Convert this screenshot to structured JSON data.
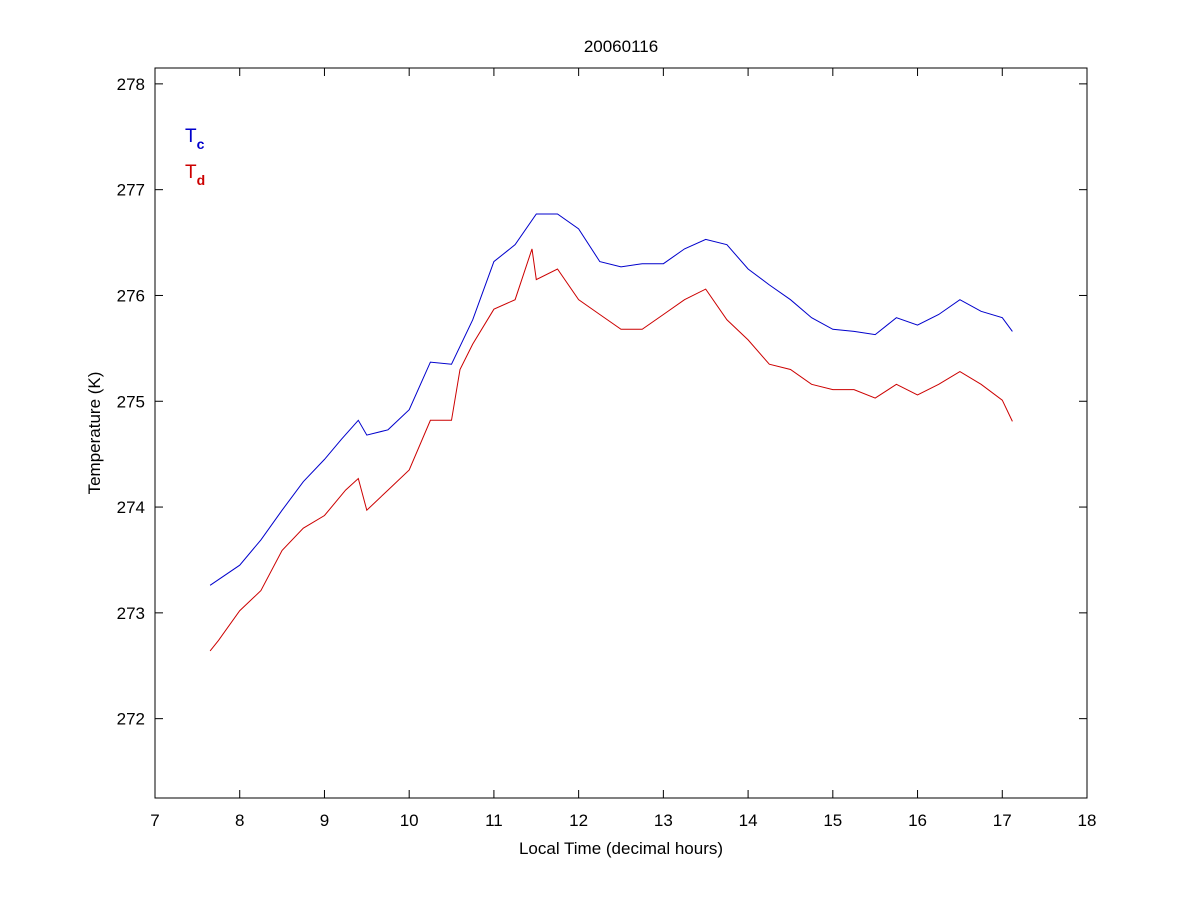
{
  "chart_data": {
    "type": "line",
    "title": "20060116",
    "xlabel": "Local Time (decimal hours)",
    "ylabel": "Temperature (K)",
    "xlim": [
      7,
      18
    ],
    "ylim": [
      271.25,
      278.15
    ],
    "xticks": [
      7,
      8,
      9,
      10,
      11,
      12,
      13,
      14,
      15,
      16,
      17,
      18
    ],
    "yticks": [
      272,
      273,
      274,
      275,
      276,
      277,
      278
    ],
    "grid": false,
    "legend_placement": "top-left",
    "legend": [
      {
        "main": "T",
        "sub": "c",
        "color": "#0000cc"
      },
      {
        "main": "T",
        "sub": "d",
        "color": "#cc0000"
      }
    ],
    "series": [
      {
        "name": "Tc",
        "color": "#0000cc",
        "x": [
          7.65,
          8.0,
          8.25,
          8.5,
          8.75,
          9.0,
          9.2,
          9.4,
          9.5,
          9.75,
          10.0,
          10.25,
          10.5,
          10.75,
          11.0,
          11.25,
          11.5,
          11.75,
          12.0,
          12.25,
          12.5,
          12.75,
          13.0,
          13.25,
          13.5,
          13.75,
          14.0,
          14.25,
          14.5,
          14.75,
          15.0,
          15.25,
          15.5,
          15.75,
          16.0,
          16.25,
          16.5,
          16.75,
          17.0,
          17.12
        ],
        "y": [
          273.26,
          273.45,
          273.69,
          273.97,
          274.24,
          274.45,
          274.64,
          274.82,
          274.68,
          274.73,
          274.92,
          275.37,
          275.35,
          275.77,
          276.32,
          276.48,
          276.77,
          276.77,
          276.63,
          276.32,
          276.27,
          276.3,
          276.3,
          276.44,
          276.53,
          276.48,
          276.25,
          276.1,
          275.96,
          275.79,
          275.68,
          275.66,
          275.63,
          275.79,
          275.72,
          275.82,
          275.96,
          275.85,
          275.79,
          275.66
        ]
      },
      {
        "name": "Td",
        "color": "#cc0000",
        "x": [
          7.65,
          7.75,
          8.0,
          8.25,
          8.5,
          8.75,
          9.0,
          9.25,
          9.4,
          9.5,
          9.75,
          10.0,
          10.25,
          10.5,
          10.6,
          10.75,
          11.0,
          11.25,
          11.45,
          11.5,
          11.75,
          12.0,
          12.25,
          12.5,
          12.75,
          13.0,
          13.25,
          13.5,
          13.75,
          14.0,
          14.25,
          14.5,
          14.75,
          15.0,
          15.25,
          15.5,
          15.75,
          16.0,
          16.25,
          16.5,
          16.75,
          17.0,
          17.12
        ],
        "y": [
          272.64,
          272.74,
          273.02,
          273.21,
          273.59,
          273.8,
          273.92,
          274.16,
          274.27,
          273.97,
          274.16,
          274.35,
          274.82,
          274.82,
          275.3,
          275.54,
          275.87,
          275.96,
          276.44,
          276.15,
          276.25,
          275.96,
          275.82,
          275.68,
          275.68,
          275.82,
          275.96,
          276.06,
          275.77,
          275.58,
          275.35,
          275.3,
          275.16,
          275.11,
          275.11,
          275.03,
          275.16,
          275.06,
          275.16,
          275.28,
          275.16,
          275.01,
          274.81
        ]
      }
    ]
  }
}
